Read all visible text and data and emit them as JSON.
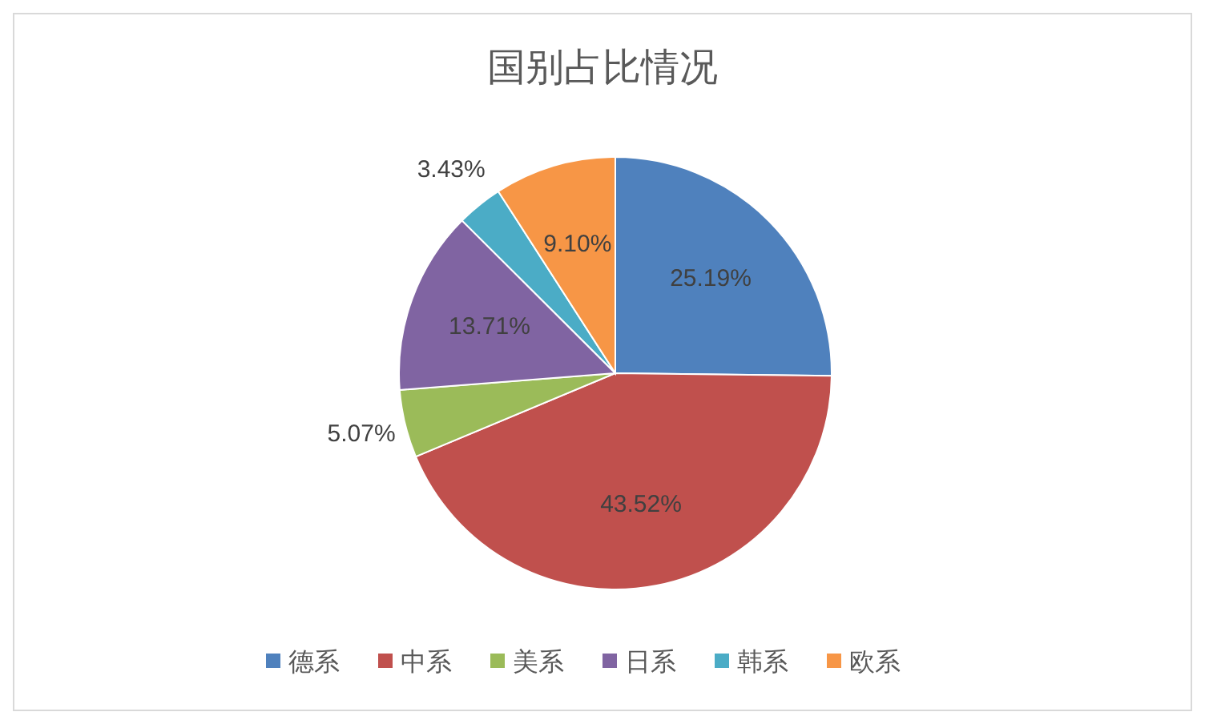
{
  "chart_data": {
    "type": "pie",
    "title": "国别占比情况",
    "categories": [
      "德系",
      "中系",
      "美系",
      "日系",
      "韩系",
      "欧系"
    ],
    "values": [
      25.19,
      43.52,
      5.07,
      13.71,
      3.43,
      9.1
    ],
    "colors": [
      "#4f81bd",
      "#c0504d",
      "#9bbb59",
      "#8064a2",
      "#4bacc6",
      "#f79646"
    ],
    "value_labels": [
      "25.19%",
      "43.52%",
      "5.07%",
      "13.71%",
      "3.43%",
      "9.10%"
    ],
    "legend": "bottom"
  }
}
